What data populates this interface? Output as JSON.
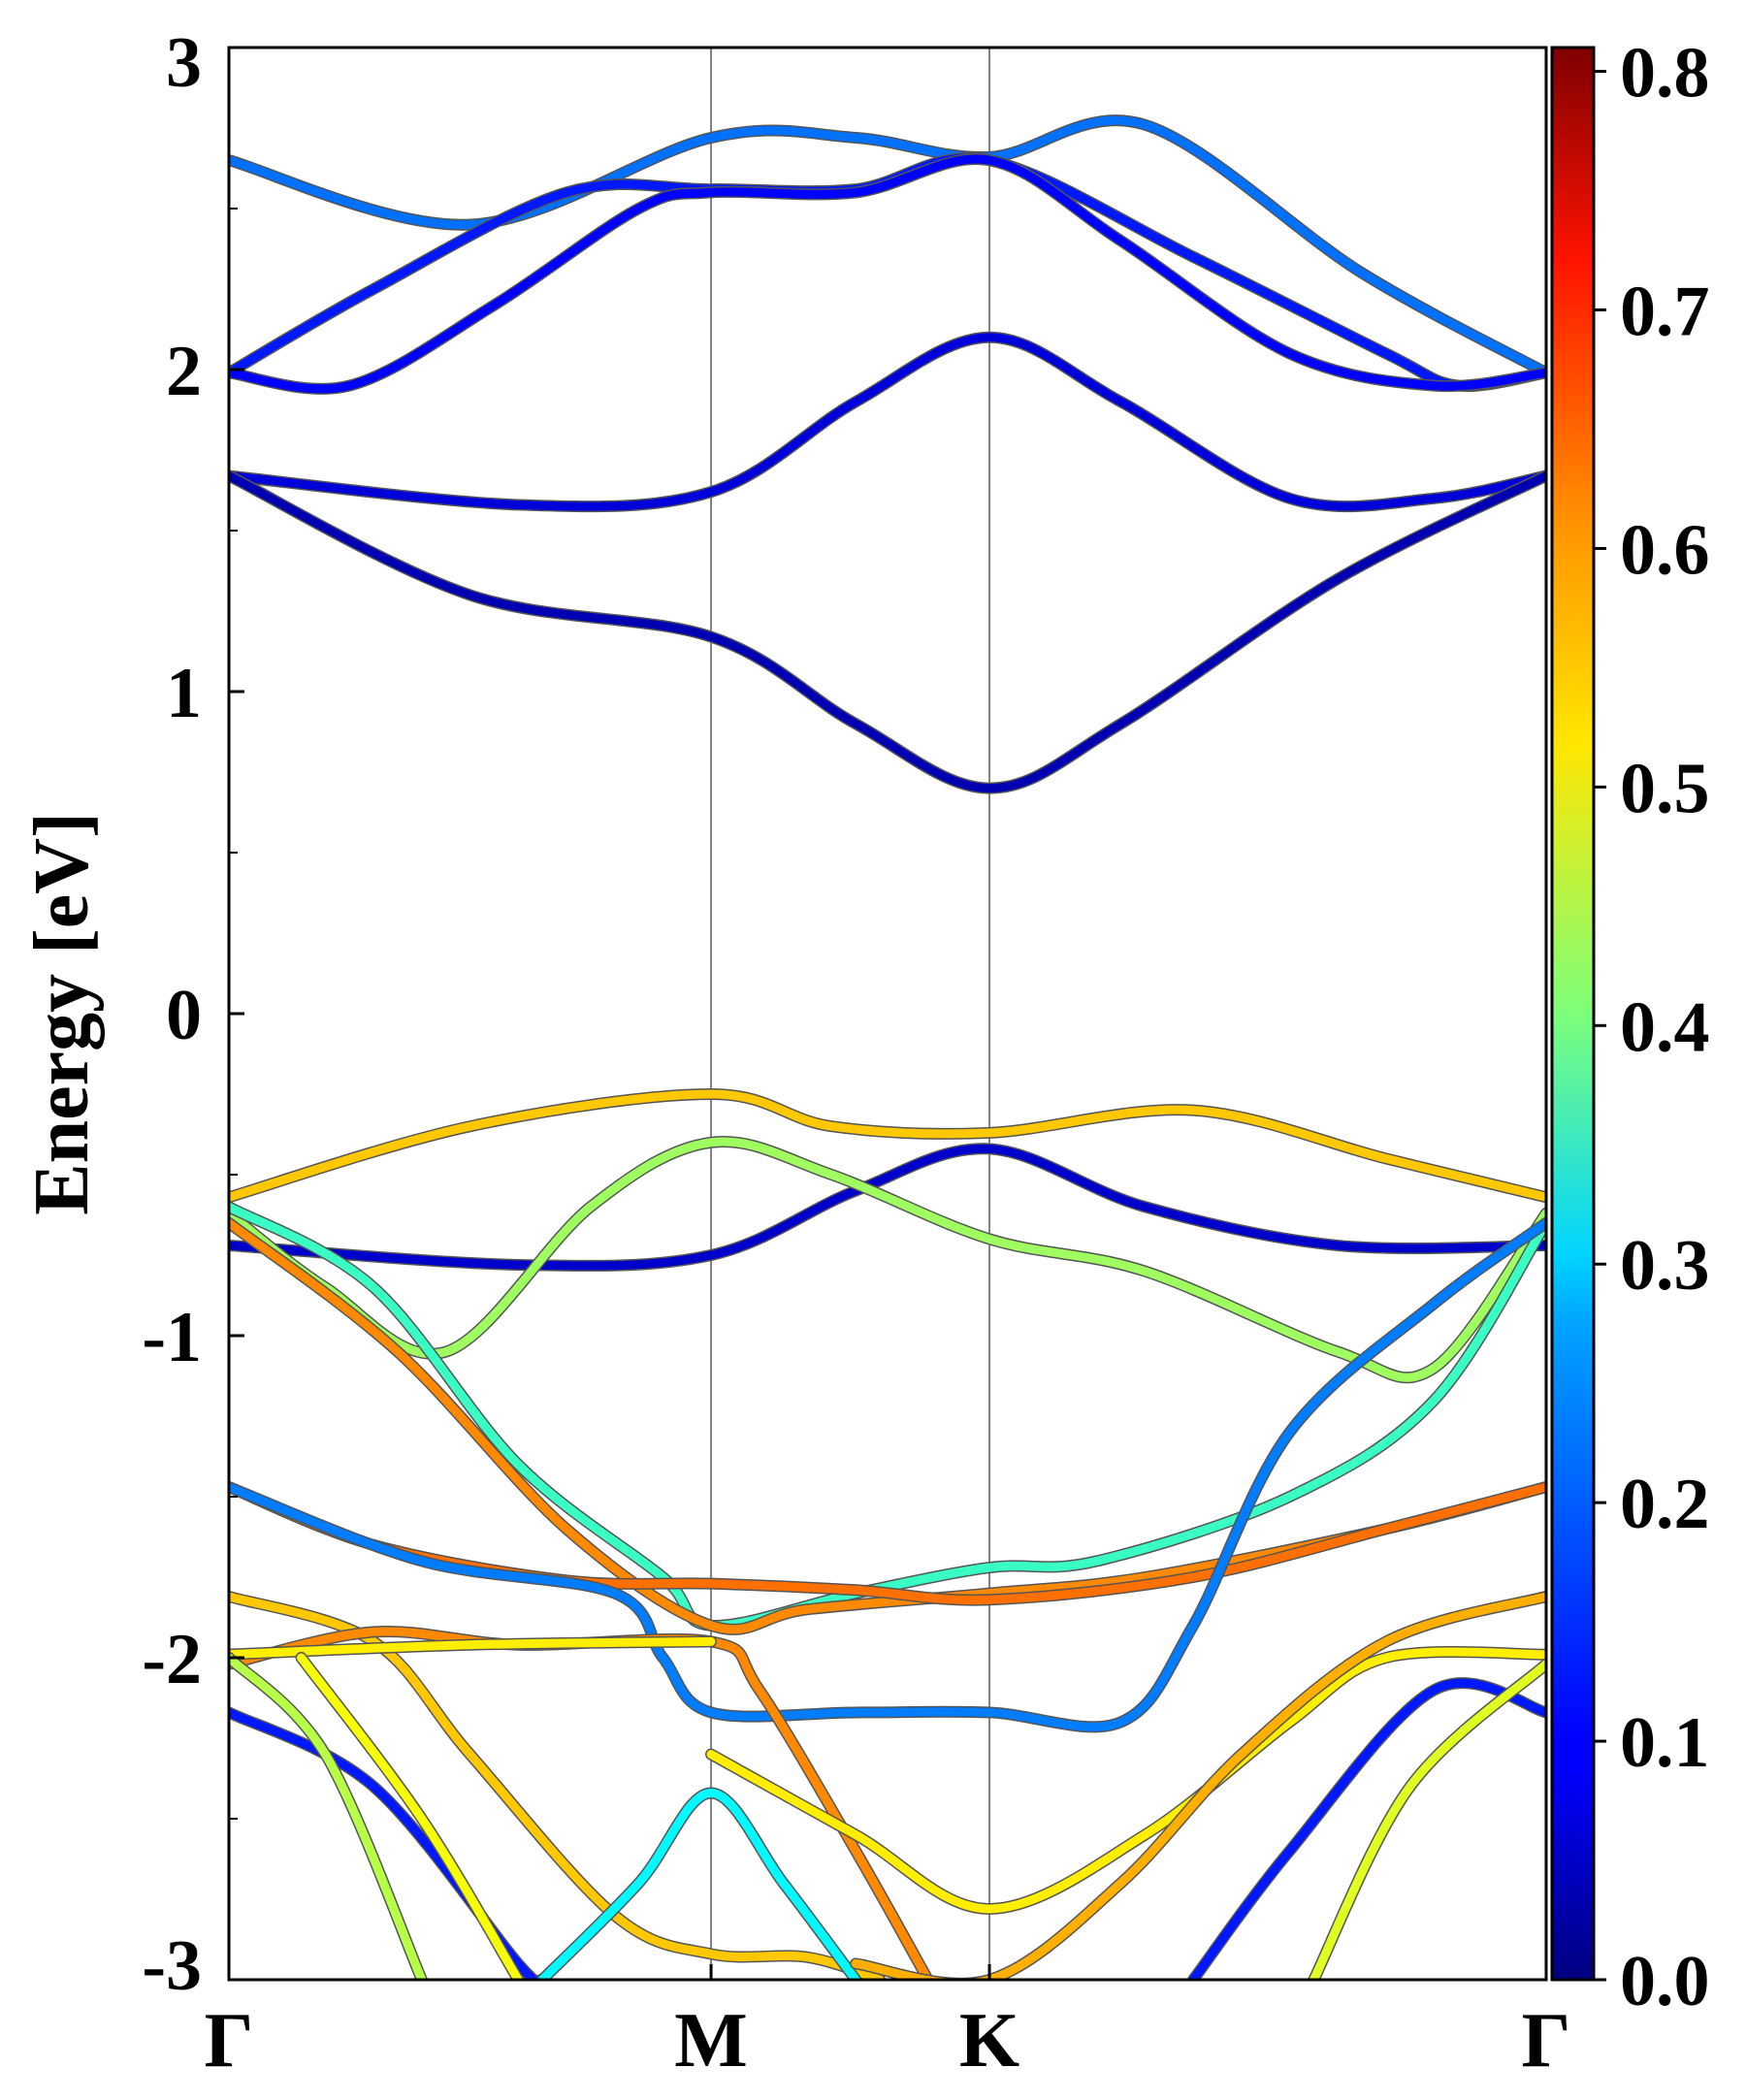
{
  "chart_data": {
    "type": "line",
    "title": "",
    "ylabel": "Energy [eV]",
    "xlabel": "",
    "ylim": [
      -3,
      3
    ],
    "yticks": [
      "3",
      "2",
      "1",
      "0",
      "-1",
      "-2",
      "-3"
    ],
    "ytick_values": [
      3,
      2,
      1,
      0,
      -1,
      -2,
      -3
    ],
    "k_points": [
      "Γ",
      "M",
      "K",
      "Γ"
    ],
    "k_positions": [
      0,
      1,
      1.5774,
      2.7321
    ],
    "grid": "vertical lines at high-symmetry points",
    "colorbar": {
      "colormap": "jet",
      "range": [
        0.0,
        0.81
      ],
      "ticks": [
        "0.0",
        "0.1",
        "0.2",
        "0.3",
        "0.4",
        "0.5",
        "0.6",
        "0.7",
        "0.8"
      ],
      "tick_values": [
        0.0,
        0.1,
        0.2,
        0.3,
        0.4,
        0.5,
        0.6,
        0.7,
        0.8
      ],
      "placement": "right"
    },
    "series": [
      {
        "energy": [
          2.65,
          2.72,
          2.75,
          2.67,
          2.75,
          2.72,
          2.65
        ],
        "weight": [
          0.19,
          0.17,
          0.16,
          0.14,
          0.17,
          0.18,
          0.19
        ],
        "pts": [
          [
            0,
            2.65
          ],
          [
            0.5,
            2.45
          ],
          [
            1.0,
            2.72
          ],
          [
            1.3,
            2.72
          ],
          [
            1.5774,
            2.66
          ],
          [
            1.9,
            2.76
          ],
          [
            2.35,
            2.3
          ],
          [
            2.7321,
            1.99
          ]
        ]
      },
      {
        "pts": [
          [
            0,
            1.99
          ],
          [
            0.3,
            2.25
          ],
          [
            0.7,
            2.55
          ],
          [
            1.0,
            2.56
          ],
          [
            1.3,
            2.56
          ],
          [
            1.5774,
            2.65
          ],
          [
            2.0,
            2.35
          ],
          [
            2.4,
            2.05
          ],
          [
            2.55,
            1.95
          ],
          [
            2.7321,
            1.99
          ]
        ],
        "weight": 0.12
      },
      {
        "pts": [
          [
            0,
            1.99
          ],
          [
            0.25,
            1.95
          ],
          [
            0.55,
            2.2
          ],
          [
            0.85,
            2.5
          ],
          [
            1.0,
            2.55
          ],
          [
            1.3,
            2.55
          ],
          [
            1.5774,
            2.65
          ],
          [
            1.85,
            2.4
          ],
          [
            2.2,
            2.05
          ],
          [
            2.5,
            1.95
          ],
          [
            2.7321,
            1.99
          ]
        ],
        "weight": 0.1
      },
      {
        "pts": [
          [
            0,
            1.67
          ],
          [
            0.6,
            1.58
          ],
          [
            1.0,
            1.62
          ],
          [
            1.3,
            1.9
          ],
          [
            1.5774,
            2.1
          ],
          [
            1.85,
            1.9
          ],
          [
            2.2,
            1.6
          ],
          [
            2.5,
            1.6
          ],
          [
            2.7321,
            1.67
          ]
        ],
        "weight": 0.07
      },
      {
        "pts": [
          [
            0,
            1.67
          ],
          [
            0.5,
            1.3
          ],
          [
            1.0,
            1.17
          ],
          [
            1.3,
            0.9
          ],
          [
            1.5774,
            0.7
          ],
          [
            1.85,
            0.9
          ],
          [
            2.3,
            1.35
          ],
          [
            2.7321,
            1.67
          ]
        ],
        "weight": 0.04
      },
      {
        "pts": [
          [
            0,
            -0.57
          ],
          [
            0.5,
            -0.35
          ],
          [
            1.0,
            -0.25
          ],
          [
            1.25,
            -0.35
          ],
          [
            1.5774,
            -0.37
          ],
          [
            2.0,
            -0.3
          ],
          [
            2.4,
            -0.45
          ],
          [
            2.7321,
            -0.57
          ]
        ],
        "weight": 0.55
      },
      {
        "pts": [
          [
            0,
            -0.72
          ],
          [
            0.6,
            -0.78
          ],
          [
            1.0,
            -0.75
          ],
          [
            1.3,
            -0.55
          ],
          [
            1.5774,
            -0.42
          ],
          [
            1.9,
            -0.6
          ],
          [
            2.3,
            -0.72
          ],
          [
            2.7321,
            -0.72
          ]
        ],
        "weight": 0.06
      },
      {
        "pts": [
          [
            0,
            -0.62
          ],
          [
            0.2,
            -0.85
          ],
          [
            0.45,
            -1.05
          ],
          [
            0.75,
            -0.6
          ],
          [
            1.0,
            -0.4
          ],
          [
            1.25,
            -0.5
          ],
          [
            1.5774,
            -0.7
          ],
          [
            1.9,
            -0.8
          ],
          [
            2.3,
            -1.05
          ],
          [
            2.5,
            -1.1
          ],
          [
            2.7321,
            -0.62
          ]
        ],
        "weight": 0.43
      },
      {
        "pts": [
          [
            0,
            -0.6
          ],
          [
            0.3,
            -0.85
          ],
          [
            0.6,
            -1.4
          ],
          [
            0.9,
            -1.75
          ],
          [
            1.0,
            -1.9
          ],
          [
            1.3,
            -1.8
          ],
          [
            1.5774,
            -1.72
          ],
          [
            1.8,
            -1.7
          ],
          [
            2.2,
            -1.5
          ],
          [
            2.5,
            -1.2
          ],
          [
            2.7321,
            -0.65
          ]
        ],
        "weight": 0.35
      },
      {
        "pts": [
          [
            0,
            -0.65
          ],
          [
            0.35,
            -1.05
          ],
          [
            0.7,
            -1.6
          ],
          [
            1.0,
            -1.9
          ],
          [
            1.2,
            -1.85
          ],
          [
            1.5774,
            -1.8
          ],
          [
            1.9,
            -1.75
          ],
          [
            2.4,
            -1.6
          ],
          [
            2.7321,
            -1.47
          ]
        ],
        "weight": 0.6
      },
      {
        "pts": [
          [
            0,
            -1.47
          ],
          [
            0.3,
            -1.65
          ],
          [
            0.7,
            -1.76
          ],
          [
            1.0,
            -1.77
          ],
          [
            1.3,
            -1.79
          ],
          [
            1.5774,
            -1.82
          ],
          [
            2.0,
            -1.75
          ],
          [
            2.4,
            -1.6
          ],
          [
            2.7321,
            -1.47
          ]
        ],
        "weight": 0.62
      },
      {
        "pts": [
          [
            0,
            -1.47
          ],
          [
            0.4,
            -1.7
          ],
          [
            0.8,
            -1.8
          ],
          [
            0.9,
            -2.0
          ],
          [
            1.0,
            -2.17
          ],
          [
            1.3,
            -2.17
          ],
          [
            1.5774,
            -2.17
          ],
          [
            1.85,
            -2.2
          ],
          [
            2.0,
            -1.9
          ],
          [
            2.2,
            -1.3
          ],
          [
            2.5,
            -0.9
          ],
          [
            2.7321,
            -0.65
          ]
        ],
        "weight": 0.2
      },
      {
        "pts": [
          [
            0,
            -1.81
          ],
          [
            0.3,
            -1.95
          ],
          [
            0.5,
            -2.3
          ],
          [
            0.8,
            -2.8
          ],
          [
            1.0,
            -2.92
          ],
          [
            1.2,
            -2.93
          ],
          [
            1.35,
            -3.0
          ]
        ],
        "weight": 0.55
      },
      {
        "pts": [
          [
            0,
            -2.02
          ],
          [
            0.3,
            -1.92
          ],
          [
            0.6,
            -1.96
          ],
          [
            1.0,
            -1.95
          ],
          [
            1.1,
            -2.1
          ],
          [
            1.3,
            -2.6
          ],
          [
            1.45,
            -3.0
          ]
        ],
        "weight": 0.6
      },
      {
        "pts": [
          [
            0,
            -1.99
          ],
          [
            0.5,
            -1.96
          ],
          [
            1.0,
            -1.95
          ]
        ],
        "weight": 0.52
      },
      {
        "pts": [
          [
            0,
            -2.17
          ],
          [
            0.3,
            -2.4
          ],
          [
            0.6,
            -2.95
          ],
          [
            0.65,
            -3.0
          ]
        ],
        "weight": 0.12
      },
      {
        "pts": [
          [
            0.65,
            -3.0
          ],
          [
            0.85,
            -2.7
          ],
          [
            1.0,
            -2.42
          ],
          [
            1.15,
            -2.7
          ],
          [
            1.3,
            -3.0
          ]
        ],
        "weight": 0.3
      },
      {
        "pts": [
          [
            0,
            -2.0
          ],
          [
            0.2,
            -2.3
          ],
          [
            0.4,
            -3.0
          ]
        ],
        "weight": 0.45
      },
      {
        "pts": [
          [
            0.15,
            -2.0
          ],
          [
            0.4,
            -2.5
          ],
          [
            0.6,
            -3.0
          ]
        ],
        "weight": 0.5
      },
      {
        "pts": [
          [
            1.0,
            -2.3
          ],
          [
            1.3,
            -2.55
          ],
          [
            1.5774,
            -2.78
          ],
          [
            1.9,
            -2.55
          ],
          [
            2.2,
            -2.2
          ],
          [
            2.4,
            -2.0
          ],
          [
            2.7321,
            -1.99
          ]
        ],
        "weight": 0.52
      },
      {
        "pts": [
          [
            1.3,
            -2.95
          ],
          [
            1.5774,
            -3.0
          ],
          [
            1.85,
            -2.7
          ],
          [
            2.1,
            -2.3
          ],
          [
            2.4,
            -1.95
          ],
          [
            2.7321,
            -1.81
          ]
        ],
        "weight": 0.57
      },
      {
        "pts": [
          [
            2.0,
            -3.0
          ],
          [
            2.2,
            -2.6
          ],
          [
            2.5,
            -2.1
          ],
          [
            2.7321,
            -2.17
          ]
        ],
        "weight": 0.12
      },
      {
        "pts": [
          [
            2.25,
            -3.0
          ],
          [
            2.45,
            -2.4
          ],
          [
            2.7321,
            -2.02
          ]
        ],
        "weight": 0.48
      }
    ]
  }
}
